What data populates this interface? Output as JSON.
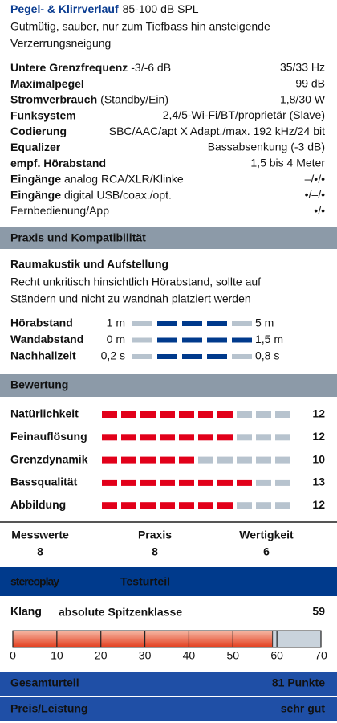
{
  "header": {
    "title": "Pegel- & Klirrverlauf",
    "title_note": "85-100 dB SPL",
    "description": [
      "Gutmütig, sauber, nur zum Tiefbass hin ansteigende",
      "Verzerrungsneigung"
    ]
  },
  "specs": [
    {
      "label": "Untere Grenzfrequenz",
      "note": "-3/-6 dB",
      "value": "35/33 Hz"
    },
    {
      "label": "Maximalpegel",
      "value": "99 dB"
    },
    {
      "label": "Stromverbrauch",
      "note": "(Standby/Ein)",
      "value": "1,8/30 W"
    },
    {
      "label": "Funksystem",
      "value": "2,4/5-Wi-Fi/BT/proprietär (Slave)"
    },
    {
      "label": "Codierung",
      "value": "SBC/AAC/apt X Adapt./max. 192 kHz/24 bit"
    },
    {
      "label": "Equalizer",
      "value": "Bassabsenkung (-3 dB)"
    },
    {
      "label": "empf. Hörabstand",
      "value": "1,5 bis 4 Meter"
    },
    {
      "label": "Eingänge",
      "note": "analog RCA/XLR/Klinke",
      "value": "–/•/•"
    },
    {
      "label": "Eingänge",
      "note": "digital USB/coax./opt.",
      "value": "•/–/•"
    },
    {
      "note": "Fernbedienung/App",
      "value": "•/•"
    }
  ],
  "praxis": {
    "heading": "Praxis und Kompatibilität",
    "subheading": "Raumakustik und Aufstellung",
    "text": [
      "Recht unkritisch hinsichtlich Hörabstand, sollte auf",
      "Ständern und nicht zu wandnah platziert werden"
    ],
    "scales": [
      {
        "label": "Hörabstand",
        "min": "1 m",
        "max": "5 m"
      },
      {
        "label": "Wandabstand",
        "min": "0 m",
        "max": "1,5 m"
      },
      {
        "label": "Nachhallzeit",
        "min": "0,2 s",
        "max": "0,8 s"
      }
    ]
  },
  "bewertung": {
    "heading": "Bewertung",
    "items": [
      {
        "label": "Natürlichkeit",
        "score": 12
      },
      {
        "label": "Feinauflösung",
        "score": 12
      },
      {
        "label": "Grenzdynamik",
        "score": 10
      },
      {
        "label": "Bassqualität",
        "score": 13
      },
      {
        "label": "Abbildung",
        "score": 12
      }
    ]
  },
  "summary": [
    {
      "label": "Messwerte",
      "value": 8
    },
    {
      "label": "Praxis",
      "value": 8
    },
    {
      "label": "Wertigkeit",
      "value": 6
    }
  ],
  "testurteil": {
    "brand": "stereoplay",
    "title": "Testurteil",
    "klang": {
      "label": "Klang",
      "note": "absolute Spitzenklasse",
      "value": 59,
      "ticks": [
        0,
        10,
        20,
        30,
        40,
        50,
        60,
        70
      ]
    },
    "gesamt": {
      "label": "Gesamturteil",
      "value": "81 Punkte"
    },
    "preis": {
      "label": "Preis/Leistung",
      "value": "sehr gut"
    }
  }
}
